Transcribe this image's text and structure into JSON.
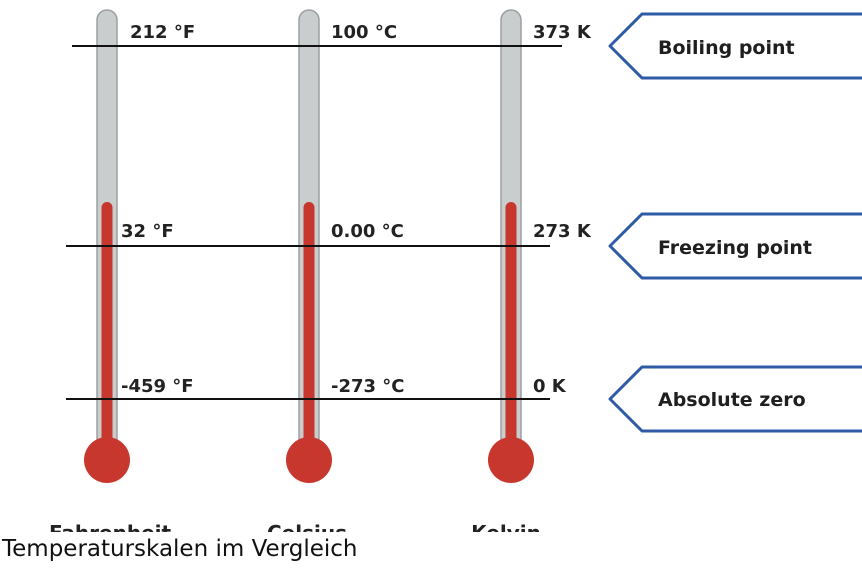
{
  "colors": {
    "tube_gray": "#c9cdce",
    "tube_outline": "#9aa0a2",
    "mercury_red": "#c8372d",
    "callout_border": "#2f5aa6",
    "reference_line": "#111111"
  },
  "thermometers": [
    {
      "scale_name": "Fahrenheit",
      "boiling": "212 °F",
      "freezing": "32 °F",
      "absolute_zero": "-459 °F"
    },
    {
      "scale_name": "Celsius",
      "boiling": "100 °C",
      "freezing": "0.00 °C",
      "absolute_zero": "-273 °C"
    },
    {
      "scale_name": "Kelvin",
      "boiling": "373 K",
      "freezing": "273 K",
      "absolute_zero": "0 K"
    }
  ],
  "callouts": {
    "boiling": "Boiling point",
    "freezing": "Freezing point",
    "absolute_zero": "Absolute zero"
  },
  "caption": "Temperaturskalen im Vergleich"
}
